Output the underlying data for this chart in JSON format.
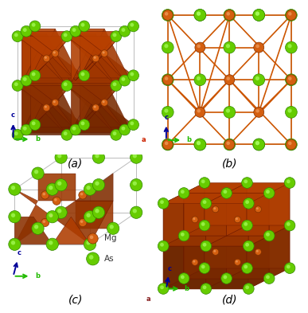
{
  "figsize": [
    3.87,
    3.93
  ],
  "dpi": 100,
  "background": "#ffffff",
  "panel_labels": [
    "(a)",
    "(b)",
    "(c)",
    "(d)"
  ],
  "mg_color": "#d45f10",
  "mg_edge": "#f09060",
  "mg_inner": "#f0a060",
  "as_color": "#66cc00",
  "as_edge": "#99ee44",
  "as_inner": "#aafe60",
  "poly_color": "#b84000",
  "poly_alpha": 0.88,
  "bond_color": "#cc5500",
  "bond_lw": 1.2,
  "cell_color": "#bbbbbb",
  "cell_lw": 0.7,
  "label_fontsize": 10
}
